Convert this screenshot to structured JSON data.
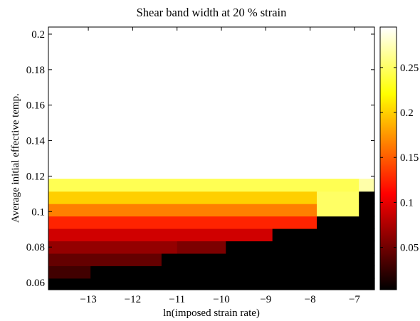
{
  "chart_data": {
    "type": "heatmap",
    "title": "Shear band width at 20 % strain",
    "xlabel": "ln(imposed strain rate)",
    "ylabel": "Average initial effective temp.",
    "xlim": [
      -13.9,
      -6.55
    ],
    "ylim": [
      0.056,
      0.204
    ],
    "x_ticks": [
      -13,
      -12,
      -11,
      -10,
      -9,
      -8,
      -7
    ],
    "x_tick_labels": [
      "−13",
      "−12",
      "−11",
      "−10",
      "−9",
      "−8",
      "−7"
    ],
    "y_ticks": [
      0.06,
      0.08,
      0.1,
      0.12,
      0.14,
      0.16,
      0.18,
      0.2
    ],
    "y_tick_labels": [
      "0.06",
      "0.08",
      "0.1",
      "0.12",
      "0.14",
      "0.16",
      "0.18",
      "0.2"
    ],
    "colorbar": {
      "colormap": "hot",
      "range": [
        0.003,
        0.295
      ],
      "ticks": [
        0.05,
        0.1,
        0.15,
        0.2,
        0.25
      ],
      "tick_labels": [
        "0.05",
        "0.1",
        "0.15",
        "0.2",
        "0.25"
      ]
    },
    "band_rows": [
      {
        "y_range": [
          0.056,
          0.0625
        ],
        "segments": [
          {
            "x_from": -13.9,
            "x_to": -6.55,
            "value": 0.003
          }
        ]
      },
      {
        "y_range": [
          0.0625,
          0.0695
        ],
        "segments": [
          {
            "x_from": -13.9,
            "x_to": -12.95,
            "value": 0.03
          },
          {
            "x_from": -12.95,
            "x_to": -6.55,
            "value": 0.003
          }
        ]
      },
      {
        "y_range": [
          0.0695,
          0.0765
        ],
        "segments": [
          {
            "x_from": -13.9,
            "x_to": -11.35,
            "value": 0.045
          },
          {
            "x_from": -11.35,
            "x_to": -6.55,
            "value": 0.003
          }
        ]
      },
      {
        "y_range": [
          0.0765,
          0.0835
        ],
        "segments": [
          {
            "x_from": -13.9,
            "x_to": -11.0,
            "value": 0.065
          },
          {
            "x_from": -11.0,
            "x_to": -9.9,
            "value": 0.055
          },
          {
            "x_from": -9.9,
            "x_to": -6.55,
            "value": 0.003
          }
        ]
      },
      {
        "y_range": [
          0.0835,
          0.0905
        ],
        "segments": [
          {
            "x_from": -13.9,
            "x_to": -8.85,
            "value": 0.09
          },
          {
            "x_from": -8.85,
            "x_to": -6.55,
            "value": 0.003
          }
        ]
      },
      {
        "y_range": [
          0.0905,
          0.0975
        ],
        "segments": [
          {
            "x_from": -13.9,
            "x_to": -7.85,
            "value": 0.125
          },
          {
            "x_from": -7.85,
            "x_to": -6.55,
            "value": 0.003
          }
        ]
      },
      {
        "y_range": [
          0.0975,
          0.1045
        ],
        "segments": [
          {
            "x_from": -13.9,
            "x_to": -7.85,
            "value": 0.165
          },
          {
            "x_from": -7.85,
            "x_to": -6.9,
            "value": 0.25
          },
          {
            "x_from": -6.9,
            "x_to": -6.55,
            "value": 0.003
          }
        ]
      },
      {
        "y_range": [
          0.1045,
          0.1115
        ],
        "segments": [
          {
            "x_from": -13.9,
            "x_to": -7.85,
            "value": 0.2
          },
          {
            "x_from": -7.85,
            "x_to": -6.9,
            "value": 0.25
          },
          {
            "x_from": -6.9,
            "x_to": -6.55,
            "value": 0.003
          }
        ]
      },
      {
        "y_range": [
          0.1115,
          0.1185
        ],
        "segments": [
          {
            "x_from": -13.9,
            "x_to": -6.9,
            "value": 0.245
          },
          {
            "x_from": -6.9,
            "x_to": -6.55,
            "value": 0.27
          }
        ]
      }
    ]
  }
}
